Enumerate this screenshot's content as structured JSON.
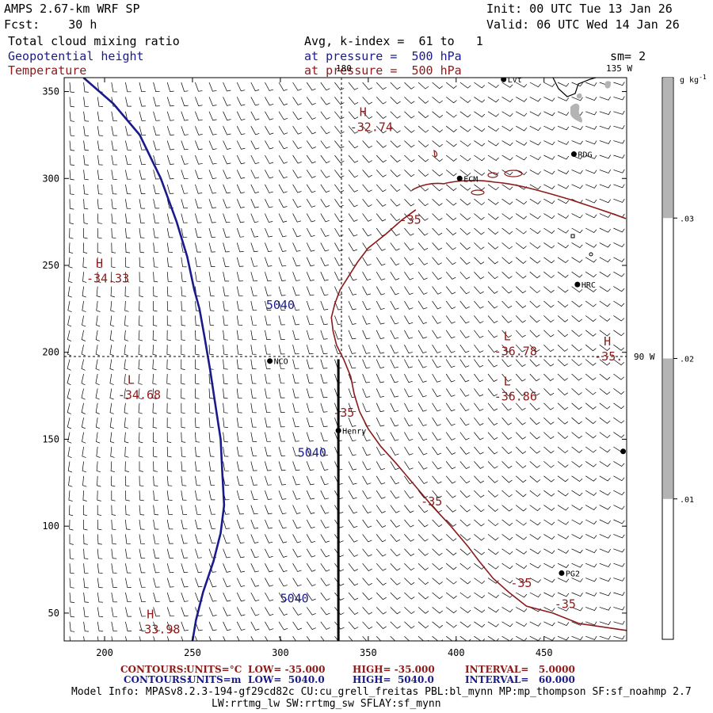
{
  "header": {
    "model": "AMPS 2.67-km WRF SP",
    "init": "Init: 00 UTC Tue 13 Jan 26",
    "fcst": "Fcst:    30 h",
    "valid": "Valid: 06 UTC Wed 14 Jan 26",
    "field1": "Total cloud mixing ratio",
    "field1_extra": "Avg, k-index =  61 to   1",
    "field2": "Geopotential height",
    "field2_extra": "at pressure =  500 hPa",
    "field3": "Temperature",
    "field3_extra": "at pressure =  500 hPa",
    "sm": "sm= 2"
  },
  "colors": {
    "height": "#1a1a8c",
    "temperature": "#8b1a1a",
    "colorbar_fill": "#b4b4b4"
  },
  "axes": {
    "x_ticks": [
      "200",
      "250",
      "300",
      "350",
      "400",
      "450"
    ],
    "x_values": [
      200,
      250,
      300,
      350,
      400,
      450
    ],
    "y_ticks": [
      "350",
      "300",
      "250",
      "200",
      "150",
      "100",
      "50"
    ],
    "y_values": [
      350,
      300,
      250,
      200,
      150,
      100,
      50
    ],
    "x_range": [
      177,
      497
    ],
    "y_range": [
      34,
      358
    ]
  },
  "meridians": {
    "lon_180": "180",
    "lon_135w": "135 W",
    "lon_90w": "90 W"
  },
  "colorbar": {
    "unit": "g kg",
    "unit_exp": "-1",
    "ticks": [
      ".03",
      ".02",
      ".01"
    ],
    "tick_values": [
      0.03,
      0.02,
      0.01
    ],
    "range": [
      0.0,
      0.04
    ],
    "shaded_ranges": [
      [
        0.01,
        0.02
      ],
      [
        0.03,
        0.04
      ]
    ]
  },
  "stations": [
    {
      "name": "LV",
      "label": "LVt",
      "x": 427,
      "y": 357
    },
    {
      "name": "RDG",
      "label": "RDG",
      "x": 467,
      "y": 314
    },
    {
      "name": "ECM",
      "label": "ECM",
      "x": 402,
      "y": 300
    },
    {
      "name": "HRC",
      "label": "HRC",
      "x": 469,
      "y": 239
    },
    {
      "name": "NCO",
      "label": "NCO",
      "x": 294,
      "y": 195
    },
    {
      "name": "Henry",
      "label": "Henry",
      "x": 333,
      "y": 155
    },
    {
      "name": "PG2",
      "label": "PG2",
      "x": 460,
      "y": 73
    },
    {
      "name": "edge",
      "label": "",
      "x": 495,
      "y": 143
    }
  ],
  "extrema": [
    {
      "type": "H",
      "value": "-32.74",
      "x": 345,
      "y": 335
    },
    {
      "type": "H",
      "value": "-34.33",
      "x": 195,
      "y": 248
    },
    {
      "type": "L",
      "value": "-36.78",
      "x": 427,
      "y": 206
    },
    {
      "type": "H",
      "value": "-35.",
      "x": 484,
      "y": 203
    },
    {
      "type": "L",
      "value": "-34.68",
      "x": 213,
      "y": 181
    },
    {
      "type": "L",
      "value": "-36.86",
      "x": 427,
      "y": 180
    },
    {
      "type": "H",
      "value": "-33.98",
      "x": 224,
      "y": 46
    }
  ],
  "height_contour": {
    "label": "5040",
    "value": 5040,
    "labels_at": [
      [
        300,
        225
      ],
      [
        318,
        140
      ],
      [
        308,
        56
      ]
    ]
  },
  "temp_contour": {
    "label": "-35",
    "value": -35,
    "labels_at": [
      [
        374,
        274
      ],
      [
        336,
        163
      ],
      [
        386,
        112
      ],
      [
        437,
        65
      ],
      [
        462,
        53
      ]
    ]
  },
  "cross_section": {
    "x": 333,
    "y_from": 34,
    "y_to": 196
  },
  "footer": {
    "contours_label": "CONTOURS:",
    "t_units": "UNITS=°C",
    "t_low": "LOW= -35.000",
    "t_high": "HIGH= -35.000",
    "t_interval": "INTERVAL=   5.0000",
    "z_units": "UNITS=m",
    "z_low": "LOW=  5040.0",
    "z_high": "HIGH=  5040.0",
    "z_interval": "INTERVAL=   60.000",
    "model_info": "Model Info: MPASv8.2.3-194-gf29cd82c CU:cu_grell_freitas PBL:bl_mynn MP:mp_thompson SF:sf_noahmp 2.7",
    "model_info2": "LW:rrtmg_lw SW:rrtmg_sw SFLAY:sf_mynn"
  }
}
